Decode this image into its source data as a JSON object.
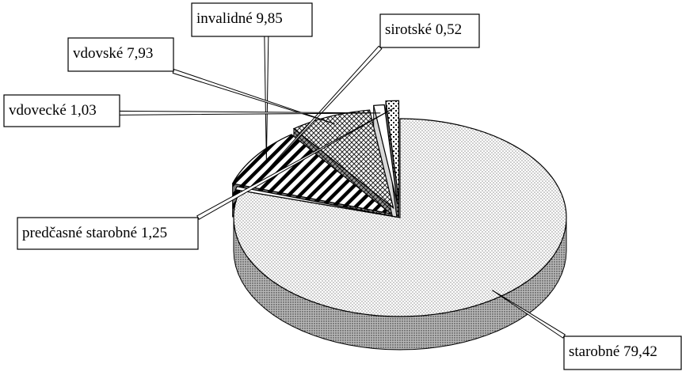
{
  "chart_data": {
    "type": "pie",
    "style": "3d-exploded",
    "title": "",
    "unit": "%",
    "slices": [
      {
        "label": "starobné",
        "value": 79.42,
        "display": "starobné  79,42",
        "pattern": "fine-dots"
      },
      {
        "label": "sirotské",
        "value": 0.52,
        "display": "sirotské 0,52",
        "pattern": "solid-white"
      },
      {
        "label": "invalidné",
        "value": 9.85,
        "display": "invalidné 9,85",
        "pattern": "diagonal-stripes"
      },
      {
        "label": "vdovské",
        "value": 7.93,
        "display": "vdovské 7,93",
        "pattern": "crosshatch"
      },
      {
        "label": "vdovecké",
        "value": 1.03,
        "display": "vdovecké 1,03",
        "pattern": "solid-white"
      },
      {
        "label": "predčasné starobné",
        "value": 1.25,
        "display": "predčasné starobné 1,25",
        "pattern": "coarse-dots"
      }
    ],
    "legend": "none"
  }
}
